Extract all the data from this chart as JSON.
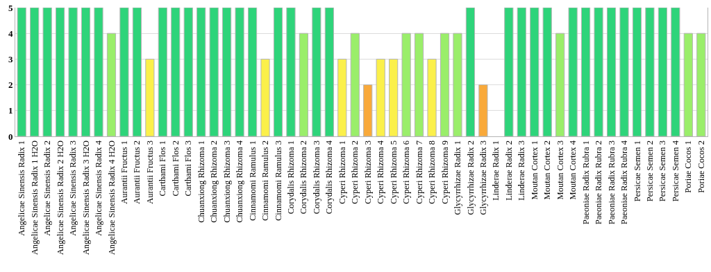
{
  "chart_data": {
    "type": "bar",
    "categories": [
      "Angelicae Sinensis Radix 1",
      "Angelicae Sinensis Radix 1 H2O",
      "Angelicae Sinensis Radix 2",
      "Angelicae Sinensis Radix 2 H2O",
      "Angelicae Sinensis Radix 3",
      "Angelicae Sinensis Radix 3 H2O",
      "Angelicae Sinensis Radix 4",
      "Angelicae Sinensis Radix 4 H2O",
      "Aurantii Fructus 1",
      "Aurantii Fructus 2",
      "Aurantii Fructus 3",
      "Carthami Flos 1",
      "Carthami Flos 2",
      "Carthami Flos 3",
      "Chuanxiong Rhizoma 1",
      "Chuanxiong Rhizoma 2",
      "Chuanxiong Rhizoma 3",
      "Chuanxiong Rhizoma 4",
      "Cinnamomi Ramulus 1",
      "Cinnamomi Ramulus 2",
      "Cinnamomi Ramulus 3",
      "Corydalis Rhizoma 1",
      "Corydalis Rhizoma 2",
      "Corydalis Rhizoma 3",
      "Corydalis Rhizoma 4",
      "Cyperi Rhizoma 1",
      "Cyperi Rhizoma 2",
      "Cyperi Rhizoma 3",
      "Cyperi Rhizoma 4",
      "Cyperi Rhizoma 5",
      "Cyperi Rhizoma 6",
      "Cyperi Rhizoma 7",
      "Cyperi Rhizoma 8",
      "Cyperi Rhizoma 9",
      "Glycyrrhizae Radix 1",
      "Glycyrrhizae Radix 2",
      "Glycyrrhizae Radix 3",
      "Linderae Radix 1",
      "Linderae Radix 2",
      "Linderae Radix 3",
      "Moutan Cortex 1",
      "Moutan Cortex 2",
      "Moutan Cortex 3",
      "Moutan Cortex 4",
      "Paeoniae Radix Rubra 1",
      "Paeoniae Radix Rubra 2",
      "Paeoniae Radix Rubra 3",
      "Paeoniae Radix Rubra 4",
      "Persicae Semen 1",
      "Persicae Semen 2",
      "Persicae Semen 3",
      "Persicae Semen 4",
      "Poriae Cocos 1",
      "Poriae Cocos 2"
    ],
    "values": [
      5,
      5,
      5,
      5,
      5,
      5,
      5,
      4,
      5,
      5,
      3,
      5,
      5,
      5,
      5,
      5,
      5,
      5,
      5,
      3,
      5,
      5,
      4,
      5,
      5,
      3,
      4,
      2,
      3,
      3,
      4,
      4,
      3,
      4,
      4,
      5,
      2,
      0,
      5,
      5,
      5,
      5,
      4,
      5,
      5,
      5,
      5,
      5,
      5,
      5,
      5,
      5,
      4,
      4
    ],
    "colors": [
      "#2ed47a",
      "#2ed47a",
      "#2ed47a",
      "#2ed47a",
      "#2ed47a",
      "#2ed47a",
      "#2ed47a",
      "#9aee6a",
      "#2ed47a",
      "#2ed47a",
      "#fbf04a",
      "#2ed47a",
      "#2ed47a",
      "#2ed47a",
      "#2ed47a",
      "#2ed47a",
      "#2ed47a",
      "#2ed47a",
      "#2ed47a",
      "#fbf04a",
      "#2ed47a",
      "#2ed47a",
      "#9aee6a",
      "#2ed47a",
      "#2ed47a",
      "#fbf04a",
      "#9aee6a",
      "#f9a93a",
      "#fbf04a",
      "#fbf04a",
      "#9aee6a",
      "#9aee6a",
      "#fbf04a",
      "#9aee6a",
      "#9aee6a",
      "#2ed47a",
      "#f9a93a",
      "#2ed47a",
      "#2ed47a",
      "#2ed47a",
      "#2ed47a",
      "#2ed47a",
      "#9aee6a",
      "#2ed47a",
      "#2ed47a",
      "#2ed47a",
      "#2ed47a",
      "#2ed47a",
      "#2ed47a",
      "#2ed47a",
      "#2ed47a",
      "#2ed47a",
      "#9aee6a",
      "#9aee6a"
    ],
    "ylim": [
      0,
      5
    ],
    "yticks": [
      0,
      1,
      2,
      3,
      4,
      5
    ],
    "grid": "y"
  }
}
